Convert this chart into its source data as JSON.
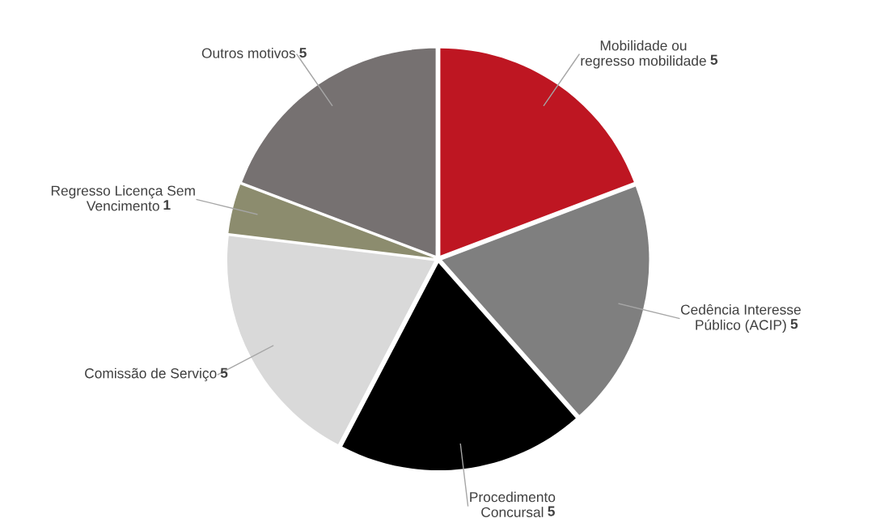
{
  "chart_data": {
    "type": "pie",
    "categories": [
      "Mobilidade ou\nregresso mobilidade",
      "Cedência Interesse\nPúblico (ACIP)",
      "Procedimento\nConcursal",
      "Comissão de Serviço",
      "Regresso Licença Sem\nVencimento",
      "Outros motivos"
    ],
    "values": [
      5,
      5,
      5,
      5,
      1,
      5
    ],
    "colors": [
      "#be1622",
      "#7f7f7f",
      "#000000",
      "#d9d9d9",
      "#8c8c6e",
      "#767171"
    ],
    "data_labels": true
  }
}
